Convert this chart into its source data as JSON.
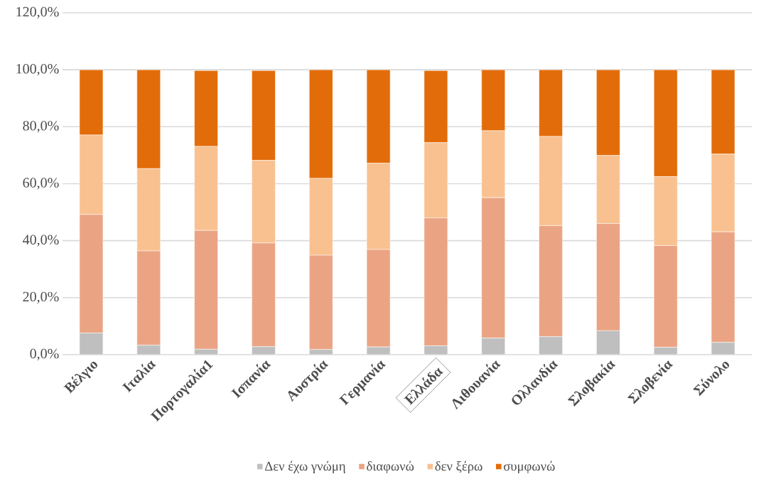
{
  "chart_data": {
    "type": "bar",
    "stacked": true,
    "categories": [
      "Βέλγιο",
      "Ιταλία",
      "Πορτογαλία1",
      "Ισπανία",
      "Αυστρία",
      "Γερμανία",
      "Ελλάδα",
      "Λιθουανία",
      "Ολλανδία",
      "Σλοβακία",
      "Σλοβενία",
      "Σύνολο"
    ],
    "series": [
      {
        "name": "Δεν έχω γνώμη",
        "color": "#bfbfbf",
        "values": [
          7.6,
          3.3,
          1.9,
          2.8,
          1.8,
          2.7,
          3.1,
          5.8,
          6.3,
          8.4,
          2.6,
          4.3
        ]
      },
      {
        "name": "διαφωνώ",
        "color": "#eba483",
        "values": [
          41.6,
          33.1,
          41.7,
          36.4,
          33.1,
          34.2,
          44.9,
          49.3,
          39.0,
          37.6,
          35.7,
          38.8
        ]
      },
      {
        "name": "δεν ξέρω",
        "color": "#f9c190",
        "values": [
          27.9,
          28.9,
          29.5,
          29.0,
          27.0,
          30.3,
          26.4,
          23.5,
          31.3,
          23.9,
          24.2,
          27.3
        ]
      },
      {
        "name": "συμφωνώ",
        "color": "#e36c0a",
        "values": [
          22.9,
          34.7,
          26.6,
          31.5,
          38.1,
          32.8,
          25.3,
          21.4,
          23.4,
          30.1,
          37.5,
          29.6
        ]
      }
    ],
    "ylim": [
      0,
      120
    ],
    "yticks": [
      {
        "value": 0,
        "label": "0,0%"
      },
      {
        "value": 20,
        "label": "20,0%"
      },
      {
        "value": 40,
        "label": "40,0%"
      },
      {
        "value": 60,
        "label": "60,0%"
      },
      {
        "value": 80,
        "label": "80,0%"
      },
      {
        "value": 100,
        "label": "100,0%"
      },
      {
        "value": 120,
        "label": "120,0%"
      }
    ],
    "grid": "y",
    "legend": "bottom"
  }
}
